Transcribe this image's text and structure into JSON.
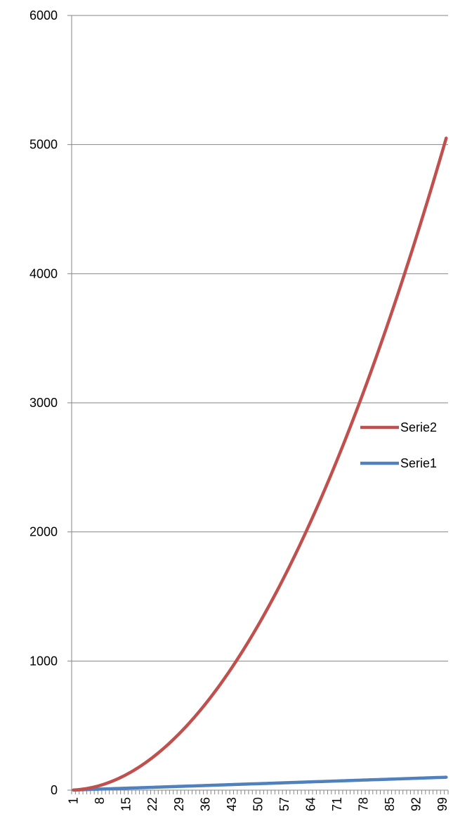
{
  "chart_data": {
    "type": "line",
    "title": "",
    "xlabel": "",
    "ylabel": "",
    "categories_range": [
      1,
      100
    ],
    "x_tick_labels": [
      "1",
      "8",
      "15",
      "22",
      "29",
      "36",
      "43",
      "50",
      "57",
      "64",
      "71",
      "78",
      "85",
      "92",
      "99"
    ],
    "y_tick_labels": [
      "0",
      "1000",
      "2000",
      "3000",
      "4000",
      "5000",
      "6000"
    ],
    "ylim": [
      0,
      6000
    ],
    "grid": "horizontal",
    "legend": "right",
    "series": [
      {
        "name": "Serie1",
        "formula": "y = x",
        "x_range": [
          1,
          100
        ],
        "start": 1,
        "end": 100,
        "color": "#4f81bd"
      },
      {
        "name": "Serie2",
        "formula": "y = x(x+1)/2",
        "x_range": [
          1,
          100
        ],
        "start": 1,
        "end": 5050,
        "color": "#c0504d"
      }
    ],
    "legend_order": [
      "Serie2",
      "Serie1"
    ]
  }
}
